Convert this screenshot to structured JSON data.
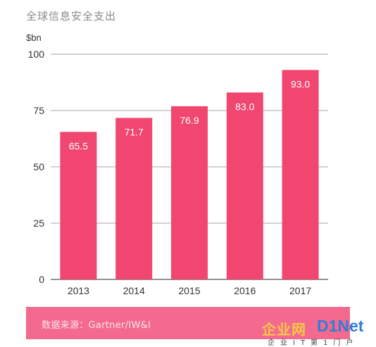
{
  "title": "全球信息安全支出",
  "footer": {
    "source": "数据来源：Gartner/IW&I"
  },
  "watermark": {
    "logo_cn": "企业网",
    "logo_en": "D1Net",
    "sub": "企业IT第1门户"
  },
  "colors": {
    "bar": "#f0466f",
    "axis": "#555555",
    "grid": "#888888",
    "footer": "#f36a8e",
    "label": "#ffffff"
  },
  "chart_data": {
    "type": "bar",
    "title": "全球信息安全支出",
    "ylabel": "$bn",
    "xlabel": "",
    "categories": [
      "2013",
      "2014",
      "2015",
      "2016",
      "2017"
    ],
    "values": [
      65.5,
      71.7,
      76.9,
      83.0,
      93.0
    ],
    "value_labels": [
      "65.5",
      "71.7",
      "76.9",
      "83.0",
      "93.0"
    ],
    "ylim": [
      0,
      100
    ],
    "yticks": [
      0,
      25,
      50,
      75,
      100
    ],
    "grid": true,
    "legend": "none"
  }
}
